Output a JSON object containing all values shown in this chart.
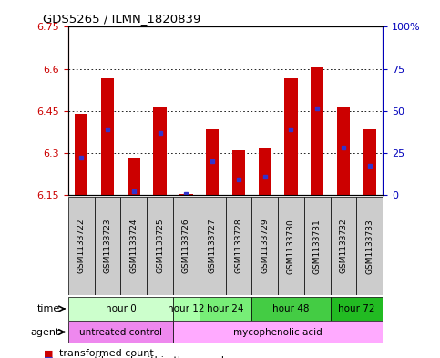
{
  "title": "GDS5265 / ILMN_1820839",
  "samples": [
    "GSM1133722",
    "GSM1133723",
    "GSM1133724",
    "GSM1133725",
    "GSM1133726",
    "GSM1133727",
    "GSM1133728",
    "GSM1133729",
    "GSM1133730",
    "GSM1133731",
    "GSM1133732",
    "GSM1133733"
  ],
  "bar_tops": [
    6.44,
    6.565,
    6.285,
    6.465,
    6.155,
    6.385,
    6.31,
    6.315,
    6.565,
    6.605,
    6.465,
    6.385
  ],
  "blue_positions": [
    6.285,
    6.385,
    6.165,
    6.37,
    6.155,
    6.27,
    6.205,
    6.215,
    6.385,
    6.46,
    6.32,
    6.255
  ],
  "bar_base": 6.15,
  "ylim_min": 6.15,
  "ylim_max": 6.75,
  "yticks_left": [
    6.15,
    6.3,
    6.45,
    6.6,
    6.75
  ],
  "yticks_right": [
    0,
    25,
    50,
    75,
    100
  ],
  "ytick_labels_right": [
    "0",
    "25",
    "50",
    "75",
    "100%"
  ],
  "bar_color": "#cc0000",
  "blue_color": "#3333cc",
  "time_groups": [
    {
      "label": "hour 0",
      "start": 0,
      "end": 3,
      "color": "#ccffcc"
    },
    {
      "label": "hour 12",
      "start": 4,
      "end": 4,
      "color": "#aaffaa"
    },
    {
      "label": "hour 24",
      "start": 5,
      "end": 6,
      "color": "#77ee77"
    },
    {
      "label": "hour 48",
      "start": 7,
      "end": 9,
      "color": "#44cc44"
    },
    {
      "label": "hour 72",
      "start": 10,
      "end": 11,
      "color": "#22bb22"
    }
  ],
  "agent_groups": [
    {
      "label": "untreated control",
      "start": 0,
      "end": 3,
      "color": "#ee88ee"
    },
    {
      "label": "mycophenolic acid",
      "start": 4,
      "end": 11,
      "color": "#ffaaff"
    }
  ],
  "sample_bg_color": "#cccccc",
  "left_tick_color": "#cc0000",
  "right_tick_color": "#0000bb",
  "bar_width": 0.5,
  "figsize": [
    4.83,
    3.93
  ],
  "dpi": 100
}
